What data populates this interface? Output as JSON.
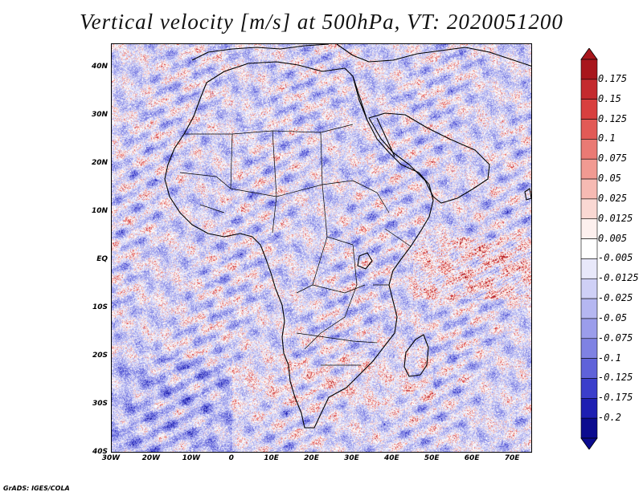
{
  "title": "Vertical velocity [m/s] at 500hPa, VT: 2020051200",
  "credit": "GrADS: IGES/COLA",
  "map": {
    "lon_range": [
      -30,
      75
    ],
    "lat_range": [
      -40,
      45
    ],
    "lat_ticks": [
      {
        "value": 40,
        "label": "40N"
      },
      {
        "value": 30,
        "label": "30N"
      },
      {
        "value": 20,
        "label": "20N"
      },
      {
        "value": 10,
        "label": "10N"
      },
      {
        "value": 0,
        "label": "EQ"
      },
      {
        "value": -10,
        "label": "10S"
      },
      {
        "value": -20,
        "label": "20S"
      },
      {
        "value": -30,
        "label": "30S"
      },
      {
        "value": -40,
        "label": "40S"
      }
    ],
    "lon_ticks": [
      {
        "value": -30,
        "label": "30W"
      },
      {
        "value": -20,
        "label": "20W"
      },
      {
        "value": -10,
        "label": "10W"
      },
      {
        "value": 0,
        "label": "0"
      },
      {
        "value": 10,
        "label": "10E"
      },
      {
        "value": 20,
        "label": "20E"
      },
      {
        "value": 30,
        "label": "30E"
      },
      {
        "value": 40,
        "label": "40E"
      },
      {
        "value": 50,
        "label": "50E"
      },
      {
        "value": 60,
        "label": "60E"
      },
      {
        "value": 70,
        "label": "70E"
      }
    ]
  },
  "colorbar": {
    "labels": [
      "0.175",
      "0.15",
      "0.125",
      "0.1",
      "0.075",
      "0.05",
      "0.025",
      "0.0125",
      "0.005",
      "-0.005",
      "-0.0125",
      "-0.025",
      "-0.05",
      "-0.075",
      "-0.1",
      "-0.125",
      "-0.175",
      "-0.2"
    ],
    "colors": [
      "#a8161c",
      "#c42a2e",
      "#d8403f",
      "#e25a56",
      "#ea7a74",
      "#f19a92",
      "#f6bab3",
      "#fad8d3",
      "#fdf0ee",
      "#ffffff",
      "#e8e8fa",
      "#cfd0f6",
      "#b5b7f1",
      "#9b9deb",
      "#7f82e3",
      "#5f62d9",
      "#3b3ecb",
      "#1e1fb2",
      "#0b0b8f"
    ]
  },
  "chart_data": {
    "type": "heatmap",
    "title": "Vertical velocity [m/s] at 500hPa, VT: 2020051200",
    "variable": "Vertical velocity",
    "units": "m/s",
    "level": "500hPa",
    "valid_time": "2020051200",
    "x_range": [
      -30,
      75
    ],
    "y_range": [
      -40,
      45
    ],
    "color_levels": [
      -0.2,
      -0.175,
      -0.125,
      -0.1,
      -0.075,
      -0.05,
      -0.025,
      -0.0125,
      -0.005,
      0.005,
      0.0125,
      0.025,
      0.05,
      0.075,
      0.1,
      0.125,
      0.15,
      0.175
    ]
  }
}
